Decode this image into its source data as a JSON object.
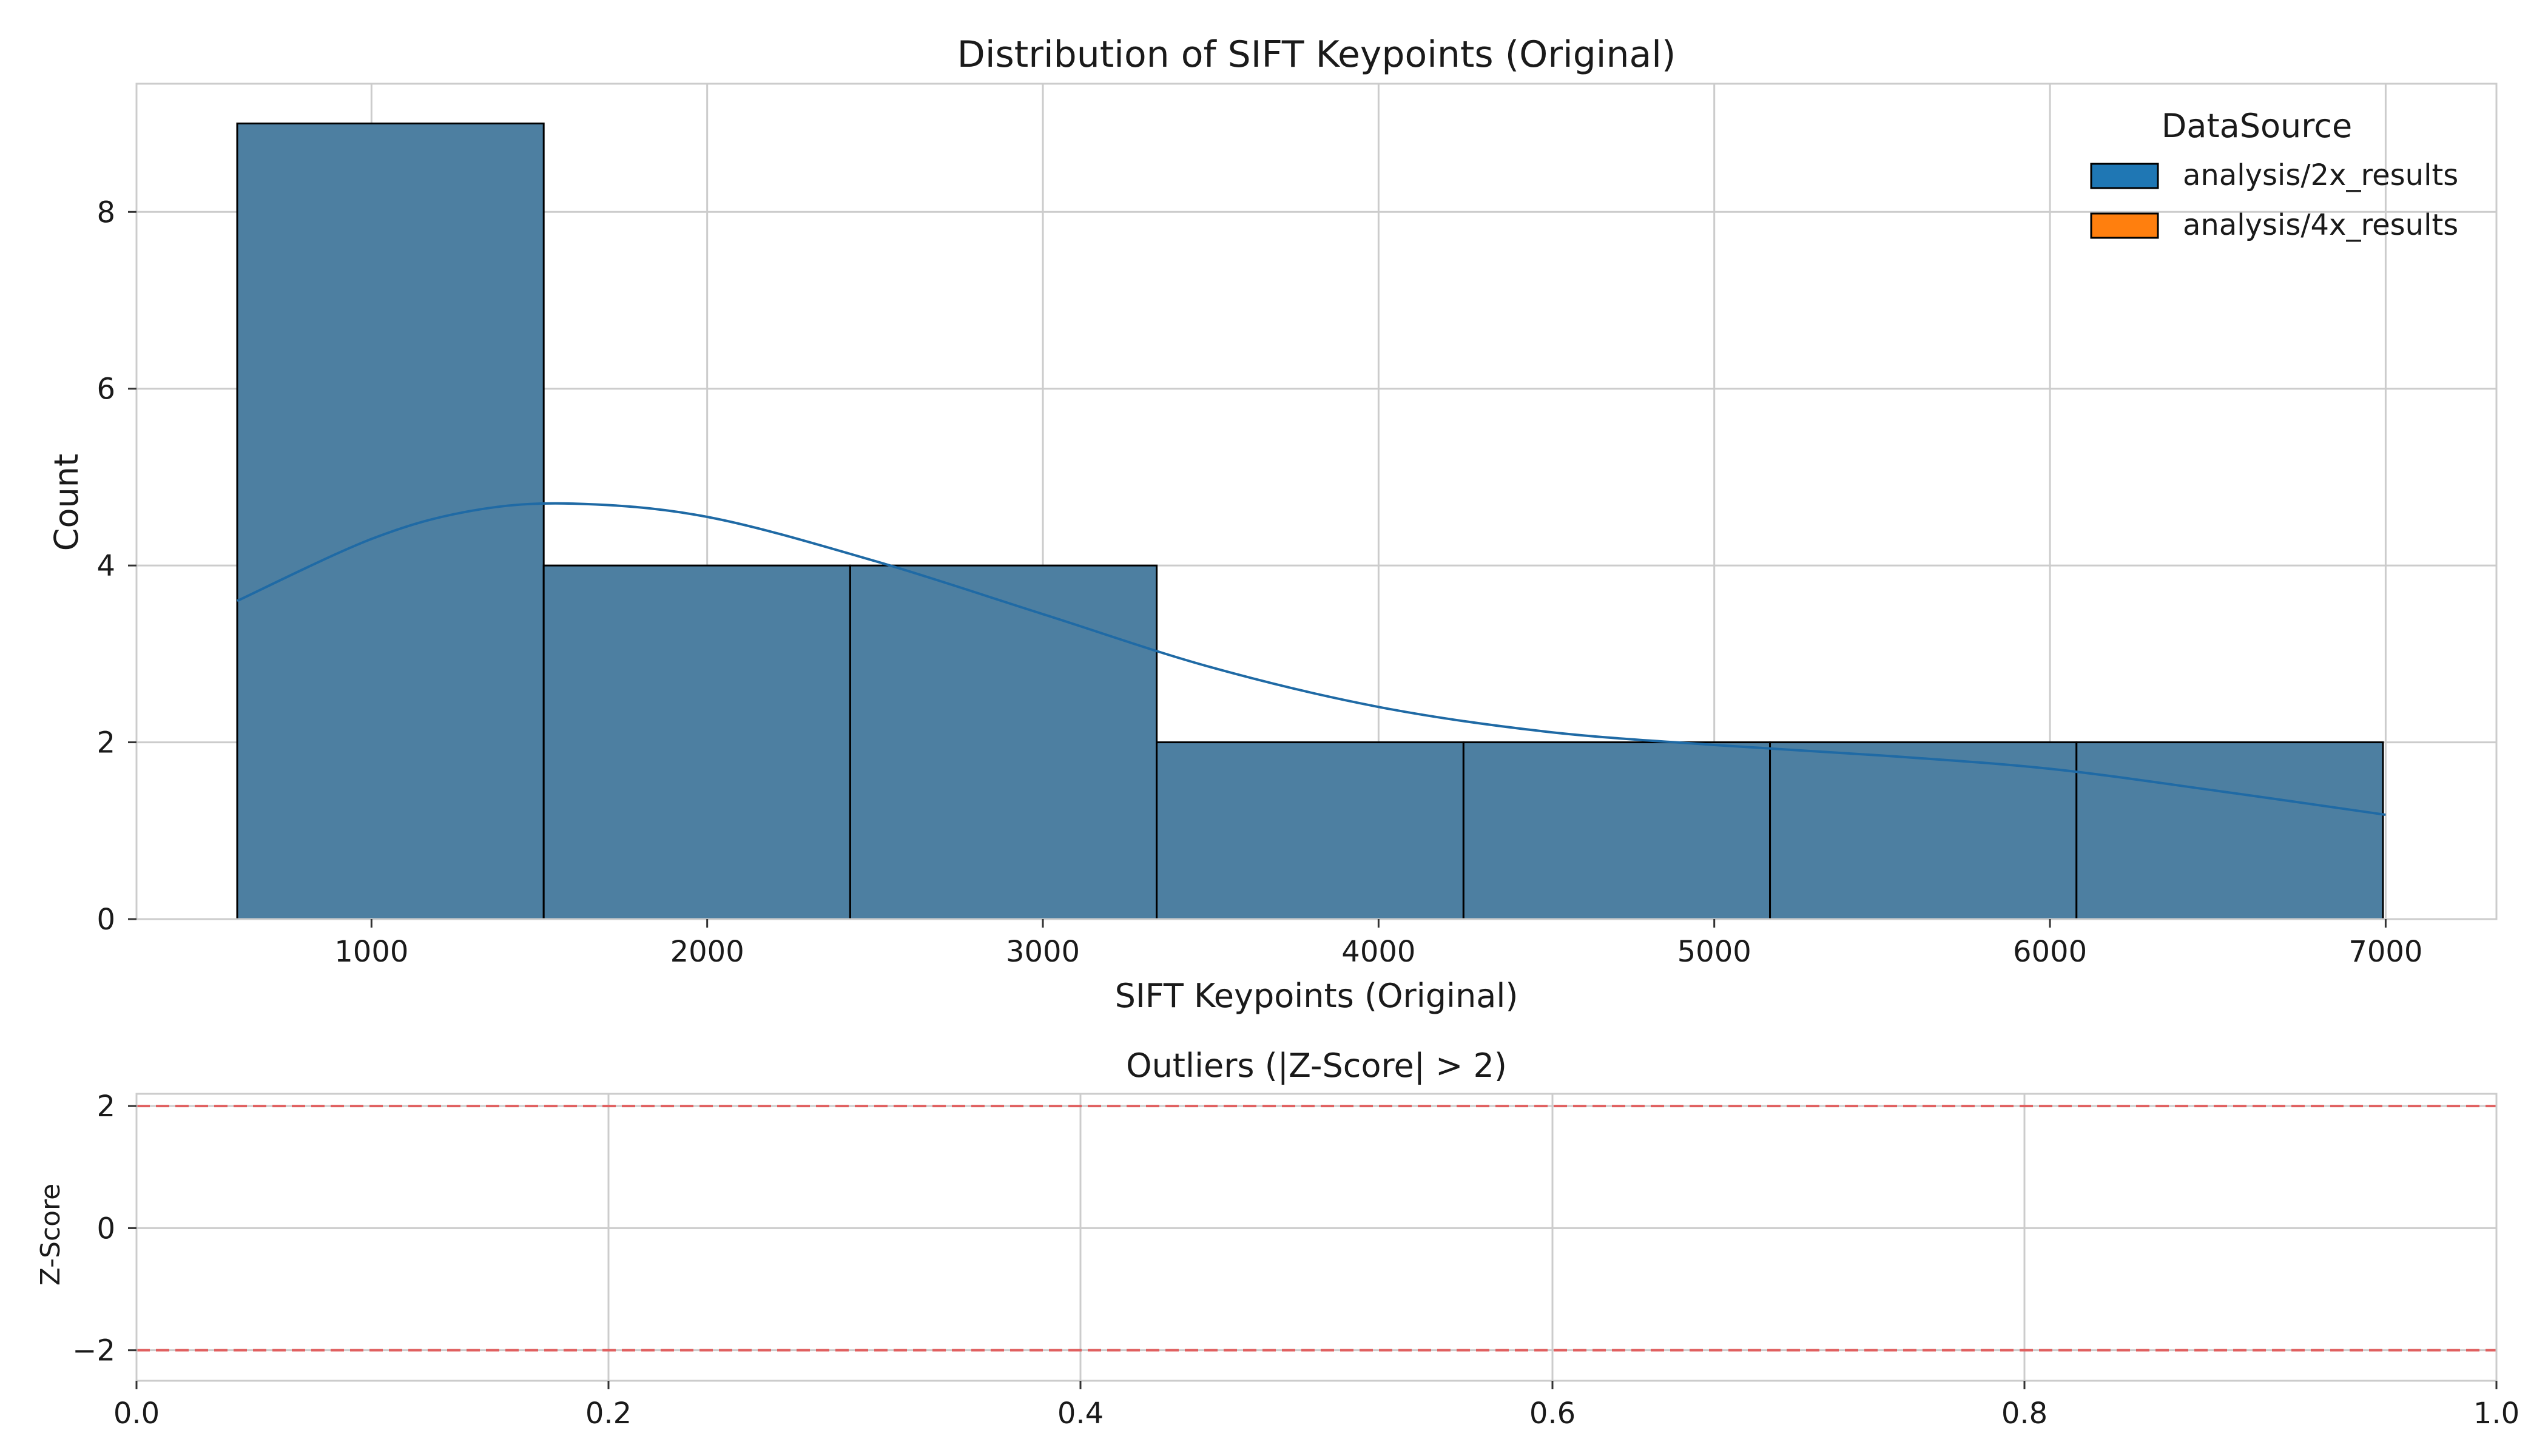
{
  "colors": {
    "series_2x": "#1f77b4",
    "series_4x": "#ff7f0e",
    "bar_fill": "#4d7fa1",
    "kde": "#1f6aa5",
    "grid": "#cccccc",
    "frame": "#cccccc",
    "threshold": "#e06060",
    "edge": "#000000"
  },
  "chart_data": [
    {
      "type": "bar",
      "subtype": "histogram_with_kde",
      "title": "Distribution of SIFT Keypoints (Original)",
      "xlabel": "SIFT Keypoints (Original)",
      "ylabel": "Count",
      "xlim": [
        300,
        7330
      ],
      "ylim": [
        0,
        9.45
      ],
      "xticks": [
        1000,
        2000,
        3000,
        4000,
        5000,
        6000,
        7000
      ],
      "xtick_labels": [
        "1000",
        "2000",
        "3000",
        "4000",
        "5000",
        "6000",
        "7000"
      ],
      "yticks": [
        0,
        2,
        4,
        6,
        8
      ],
      "ytick_labels": [
        "0",
        "2",
        "4",
        "6",
        "8"
      ],
      "grid": true,
      "bins": [
        {
          "x0": 600,
          "x1": 1513,
          "count": 9
        },
        {
          "x0": 1513,
          "x1": 2426,
          "count": 4
        },
        {
          "x0": 2426,
          "x1": 3339,
          "count": 4
        },
        {
          "x0": 3339,
          "x1": 4253,
          "count": 2
        },
        {
          "x0": 4253,
          "x1": 5166,
          "count": 2
        },
        {
          "x0": 5166,
          "x1": 6079,
          "count": 2
        },
        {
          "x0": 6079,
          "x1": 6992,
          "count": 2
        }
      ],
      "kde": {
        "x": [
          600,
          1000,
          1300,
          1600,
          2000,
          2500,
          3000,
          3500,
          4000,
          4500,
          5000,
          5500,
          6000,
          6500,
          7000
        ],
        "y": [
          3.6,
          4.3,
          4.62,
          4.7,
          4.55,
          4.05,
          3.45,
          2.85,
          2.4,
          2.12,
          1.97,
          1.85,
          1.7,
          1.45,
          1.18
        ]
      },
      "legend": {
        "title": "DataSource",
        "position": "top-right",
        "entries": [
          {
            "label": "analysis/2x_results",
            "color": "#1f77b4"
          },
          {
            "label": "analysis/4x_results",
            "color": "#ff7f0e"
          }
        ]
      }
    },
    {
      "type": "scatter",
      "title": "Outliers (|Z-Score| > 2)",
      "xlabel": "",
      "ylabel": "Z-Score",
      "xlim": [
        0,
        1
      ],
      "ylim": [
        -2.5,
        2.2
      ],
      "xticks": [
        0.0,
        0.2,
        0.4,
        0.6,
        0.8,
        1.0
      ],
      "xtick_labels": [
        "0.0",
        "0.2",
        "0.4",
        "0.6",
        "0.8",
        "1.0"
      ],
      "yticks": [
        -2,
        0,
        2
      ],
      "ytick_labels": [
        "−2",
        "0",
        "2"
      ],
      "grid": true,
      "points": [],
      "thresholds": [
        2,
        -2
      ]
    }
  ]
}
